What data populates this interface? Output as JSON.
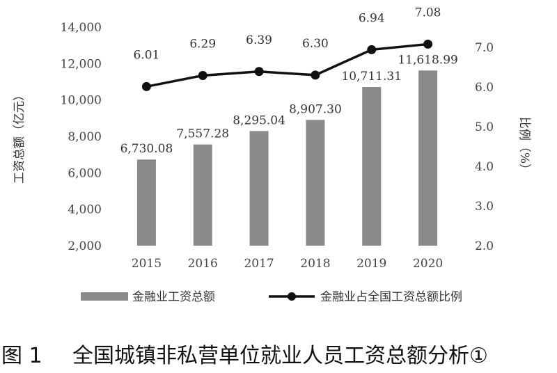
{
  "chart_data": {
    "type": "bar+line",
    "categories": [
      "2015",
      "2016",
      "2017",
      "2018",
      "2019",
      "2020"
    ],
    "series": [
      {
        "name": "金融业工资总额",
        "type": "bar",
        "axis": "left",
        "values": [
          6730.08,
          7557.28,
          8295.04,
          8907.3,
          10711.31,
          11618.99
        ],
        "labels": [
          "6,730.08",
          "7,557.28",
          "8,295.04",
          "8,907.30",
          "10,711.31",
          "11,618.99"
        ]
      },
      {
        "name": "金融业占全国工资总额比例",
        "type": "line",
        "axis": "right",
        "values": [
          6.01,
          6.29,
          6.39,
          6.3,
          6.94,
          7.08
        ],
        "labels": [
          "6.01",
          "6.29",
          "6.39",
          "6.30",
          "6.94",
          "7.08"
        ]
      }
    ],
    "ylabel": "工资总额（亿元）",
    "y2label": "比例（%）",
    "ylim": [
      2000,
      14000
    ],
    "y2lim": [
      2.0,
      7.0
    ],
    "yticks": [
      "2,000",
      "4,000",
      "6,000",
      "8,000",
      "10,000",
      "12,000",
      "14,000"
    ],
    "y2ticks": [
      "2.0",
      "3.0",
      "4.0",
      "5.0",
      "6.0",
      "7.0"
    ],
    "legend_position": "bottom",
    "grid": false,
    "colors": {
      "bar": "#8a8a8a",
      "line": "#111111"
    }
  },
  "caption": {
    "number": "图 1",
    "title": "全国城镇非私营单位就业人员工资总额分析①"
  }
}
